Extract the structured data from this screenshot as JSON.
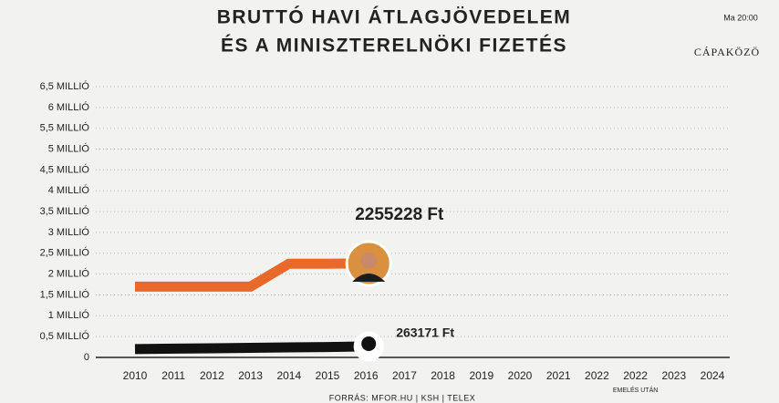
{
  "chart_data": {
    "type": "line",
    "title_lines": [
      "BRUTTÓ HAVI ÁTLAGJÖVEDELEM",
      "ÉS A MINISZTERELNÖKI FIZETÉS"
    ],
    "badge": {
      "time": "Ma 20:00",
      "brand": "CÁPAKÖZÖ"
    },
    "source": "FORRÁS: MFOR.HU | KSH | TELEX",
    "categories": [
      {
        "label": "2010"
      },
      {
        "label": "2011"
      },
      {
        "label": "2012"
      },
      {
        "label": "2013"
      },
      {
        "label": "2014"
      },
      {
        "label": "2015"
      },
      {
        "label": "2016"
      },
      {
        "label": "2017"
      },
      {
        "label": "2018"
      },
      {
        "label": "2019"
      },
      {
        "label": "2020"
      },
      {
        "label": "2021"
      },
      {
        "label": "2022"
      },
      {
        "label": "2022",
        "note": "EMELÉS UTÁN"
      },
      {
        "label": "2023"
      },
      {
        "label": "2024"
      }
    ],
    "series": [
      {
        "color": "#e8692a",
        "values": [
          1700000,
          1700000,
          1700000,
          1700000,
          2250000,
          2250000,
          2255228,
          null,
          null,
          null,
          null,
          null,
          null,
          null,
          null,
          null
        ],
        "value_labels": [
          null,
          null,
          null,
          null,
          null,
          null,
          "2255228 Ft",
          null,
          null,
          null,
          null,
          null,
          null,
          null,
          null,
          null
        ]
      },
      {
        "color": "#111111",
        "values": [
          200000,
          210000,
          220000,
          230000,
          240000,
          250000,
          263171,
          null,
          null,
          null,
          null,
          null,
          null,
          null,
          null,
          null
        ],
        "value_labels": [
          null,
          null,
          null,
          null,
          null,
          null,
          "263171 Ft",
          null,
          null,
          null,
          null,
          null,
          null,
          null,
          null,
          null
        ]
      }
    ],
    "ylim": [
      0,
      6500000
    ],
    "yticks": [
      0,
      {
        "value": 500000,
        "label": "0,5 MILLIÓ"
      },
      {
        "value": 1000000,
        "label": "1 MILLIÓ"
      },
      {
        "value": 1500000,
        "label": "1,5 MILLIÓ"
      },
      {
        "value": 2000000,
        "label": "2 MILLIÓ"
      },
      {
        "value": 2500000,
        "label": "2,5 MILLIÓ"
      },
      {
        "value": 3000000,
        "label": "3 MILLIÓ"
      },
      {
        "value": 3500000,
        "label": "3,5 MILLIÓ"
      },
      {
        "value": 4000000,
        "label": "4 MILLIÓ"
      },
      {
        "value": 4500000,
        "label": "4,5 MILLIÓ"
      },
      {
        "value": 5000000,
        "label": "5 MILLIÓ"
      },
      {
        "value": 5500000,
        "label": "5,5 MILLIÓ"
      },
      {
        "value": 6000000,
        "label": "6 MILLIÓ"
      },
      {
        "value": 6500000,
        "label": "6,5 MILLIÓ"
      }
    ],
    "grid": true
  }
}
